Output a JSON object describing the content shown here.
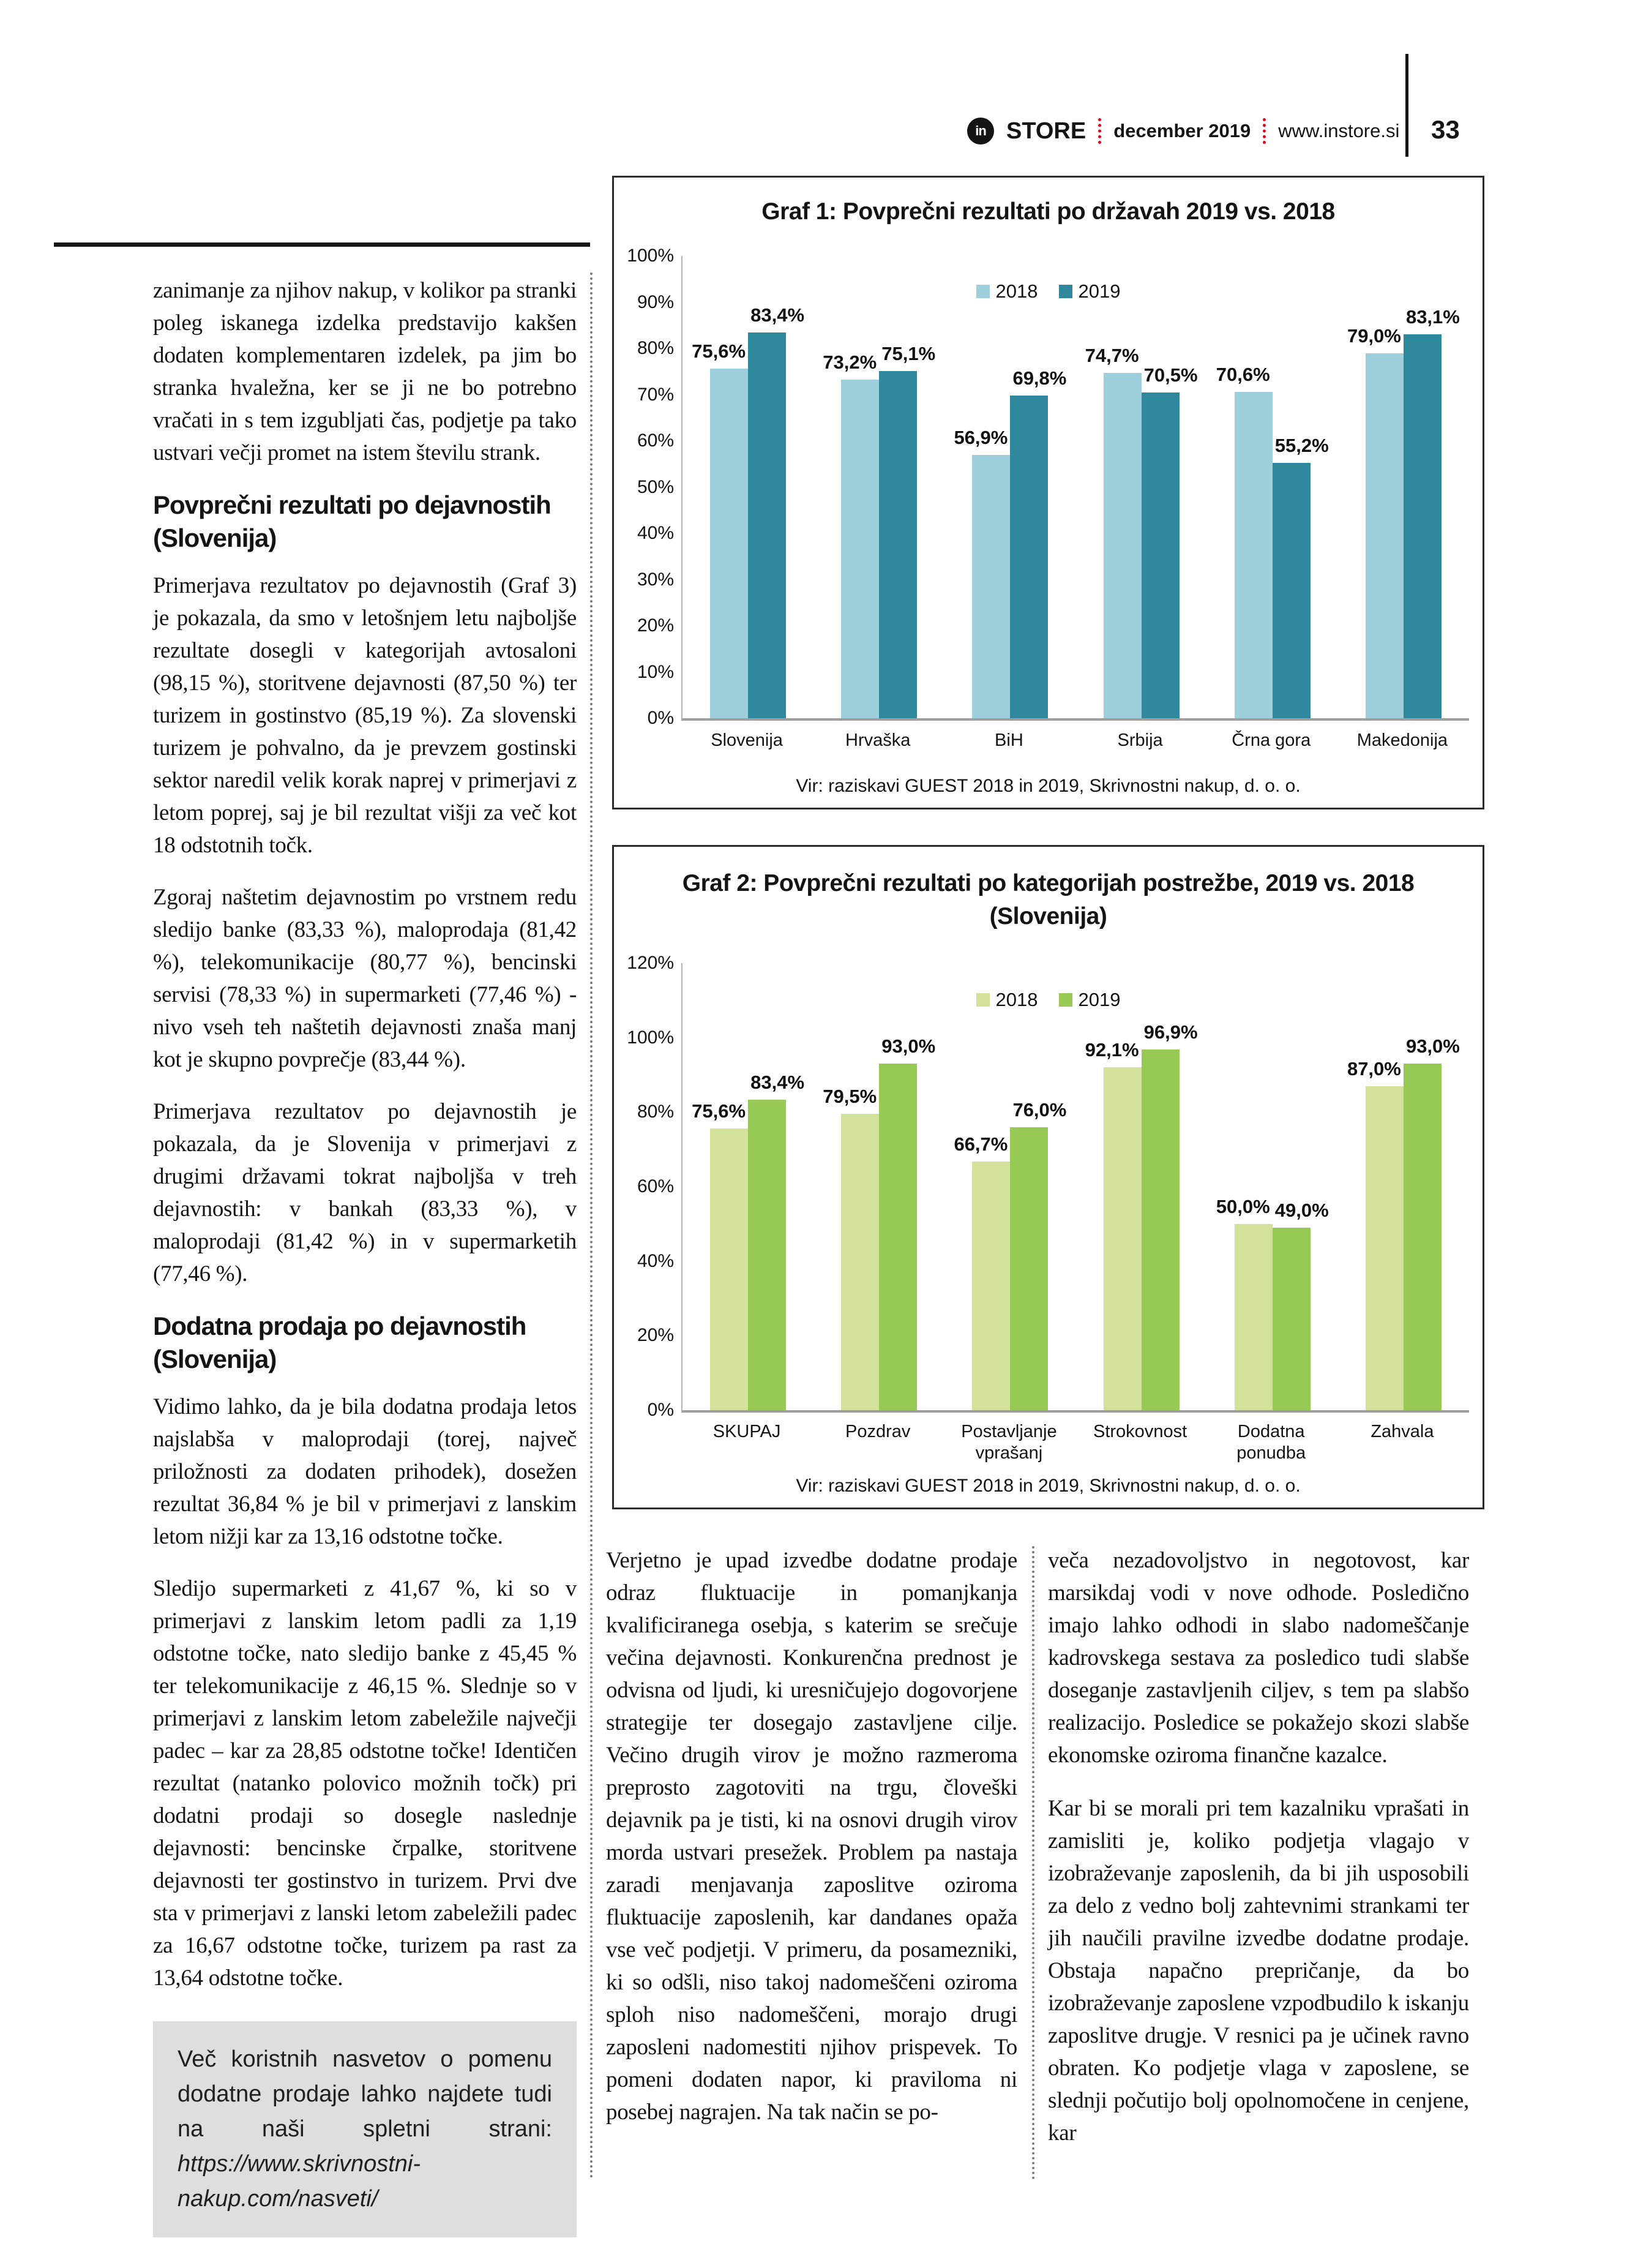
{
  "header": {
    "logo_text": "in",
    "brand": "STORE",
    "date": "december 2019",
    "site": "www.instore.si",
    "page_number": "33"
  },
  "left_column": {
    "intro_paragraph": "zanimanje za njihov nakup, v kolikor pa stranki poleg iskanega izdelka predstavijo kakšen dodaten komplementaren izdelek, pa jim bo stranka hvaležna, ker se ji ne bo potrebno vračati in s tem izgubljati čas, podjetje pa tako ustvari večji promet na istem številu strank.",
    "sections": [
      {
        "heading": "Povprečni rezultati po dejavnostih (Slovenija)",
        "paragraphs": [
          "Primerjava rezultatov po dejavnostih (Graf 3) je pokazala, da smo v letošnjem letu najboljše rezultate dosegli v kategorijah avtosaloni (98,15 %), storitvene dejavnosti (87,50 %) ter turizem in gostinstvo (85,19 %). Za slovenski turizem je pohvalno, da je prevzem gostinski sektor naredil velik korak naprej v primerjavi z letom poprej, saj je bil rezultat višji za več kot 18 odstotnih točk.",
          "Zgoraj naštetim dejavnostim po vrstnem redu sledijo banke (83,33 %), maloprodaja (81,42 %), telekomunikacije (80,77 %), bencinski servisi (78,33 %) in supermarketi (77,46 %) - nivo vseh teh naštetih dejavnosti znaša manj kot je skupno povprečje (83,44 %).",
          "Primerjava rezultatov po dejavnostih je pokazala, da je Slovenija v primerjavi z drugimi državami tokrat najboljša v treh dejavnostih: v bankah (83,33 %), v maloprodaji (81,42 %) in v supermarketih (77,46 %)."
        ]
      },
      {
        "heading": "Dodatna prodaja po dejavnostih (Slovenija)",
        "paragraphs": [
          "Vidimo lahko, da je bila dodatna prodaja letos najslabša v maloprodaji (torej, največ priložnosti za dodaten prihodek), dosežen rezultat 36,84 % je bil v primerjavi z lanskim letom nižji kar za 13,16 odstotne točke.",
          "Sledijo supermarketi z 41,67 %, ki so v primerjavi z lanskim letom padli za 1,19 odstotne točke, nato sledijo banke z 45,45 % ter telekomunikacije z 46,15 %. Slednje so v primerjavi z lanskim letom zabeležile največji padec – kar za 28,85 odstotne točke! Identičen rezultat (natanko polovico možnih točk) pri dodatni prodaji so dosegle naslednje dejavnosti: bencinske črpalke, storitvene dejavnosti ter gostinstvo in turizem. Prvi dve sta v primerjavi z lanski letom zabeležili padec za 16,67 odstotne točke, turizem pa rast za 13,64 odstotne točke."
        ]
      }
    ],
    "info_box": {
      "text": "Več koristnih nasvetov o pomenu dodatne prodaje lahko najdete tudi na naši spletni strani: ",
      "url": "https://www.skrivnostni-nakup.com/nasveti/"
    }
  },
  "chart_data": [
    {
      "type": "bar",
      "title": "Graf 1: Povprečni rezultati po državah 2019 vs. 2018",
      "categories": [
        "Slovenija",
        "Hrvaška",
        "BiH",
        "Srbija",
        "Črna gora",
        "Makedonija"
      ],
      "series": [
        {
          "name": "2018",
          "color": "#9dcfdc",
          "values": [
            75.6,
            73.2,
            56.9,
            74.7,
            70.6,
            79.0
          ]
        },
        {
          "name": "2019",
          "color": "#30889f",
          "values": [
            83.4,
            75.1,
            69.8,
            70.5,
            55.2,
            83.1
          ]
        }
      ],
      "ylim": [
        0,
        100
      ],
      "ytick_step": 10,
      "grid": false,
      "legend_position": "top-center",
      "source": "Vir: raziskavi GUEST 2018 in 2019, Skrivnostni nakup, d. o. o."
    },
    {
      "type": "bar",
      "title": "Graf 2: Povprečni rezultati po kategorijah postrežbe, 2019 vs. 2018",
      "subtitle": "(Slovenija)",
      "categories": [
        "SKUPAJ",
        "Pozdrav",
        "Postavljanje vprašanj",
        "Strokovnost",
        "Dodatna ponudba",
        "Zahvala"
      ],
      "series": [
        {
          "name": "2018",
          "color": "#d3e29b",
          "values": [
            75.6,
            79.5,
            66.7,
            92.1,
            50.0,
            87.0
          ]
        },
        {
          "name": "2019",
          "color": "#96ca55",
          "values": [
            83.4,
            93.0,
            76.0,
            96.9,
            49.0,
            93.0
          ]
        }
      ],
      "ylim": [
        0,
        120
      ],
      "ytick_step": 20,
      "grid": false,
      "legend_position": "top-center",
      "source": "Vir: raziskavi GUEST 2018 in 2019, Skrivnostni nakup, d. o. o."
    }
  ],
  "bottom_columns": {
    "middle": [
      "Verjetno je upad izvedbe dodatne prodaje odraz fluktuacije in pomanjkanja kvalificiranega osebja, s katerim se srečuje večina dejavnosti. Konkurenčna prednost je odvisna od ljudi, ki uresničujejo dogovorjene strategije ter dosegajo zastavljene cilje. Večino drugih virov je možno razmeroma preprosto zagotoviti na trgu, človeški dejavnik pa je tisti, ki na osnovi drugih virov morda ustvari presežek. Problem pa nastaja zaradi menjavanja zaposlitve oziroma fluktuacije zaposlenih, kar dandanes opaža vse več podjetji. V primeru, da posamezniki, ki so odšli, niso takoj nadomeščeni oziroma sploh niso nadomeščeni, morajo drugi zaposleni nadomestiti njihov prispevek. To pomeni dodaten napor, ki praviloma ni posebej nagrajen. Na tak način se po-"
    ],
    "right": [
      "veča nezadovoljstvo in negotovost, kar marsikdaj vodi v nove odhode. Posledično imajo lahko odhodi in slabo nadomeščanje kadrovskega sestava za posledico tudi slabše doseganje zastavljenih ciljev, s tem pa slabšo realizacijo. Posledice se pokažejo skozi slabše ekonomske oziroma finančne kazalce.",
      "Kar bi se morali pri tem kazalniku vprašati in zamisliti je, koliko podjetja vlagajo v izobraževanje zaposlenih, da bi jih usposobili za delo z vedno bolj zahtevnimi strankami ter jih naučili pravilne izvedbe dodatne prodaje. Obstaja napačno prepričanje, da bo izobraževanje zaposlene vzpodbudilo k iskanju zaposlitve drugje. V resnici pa je učinek ravno obraten. Ko podjetje vlaga v zaposlene, se slednji počutijo bolj opolnomočene in cenjene, kar"
    ]
  }
}
